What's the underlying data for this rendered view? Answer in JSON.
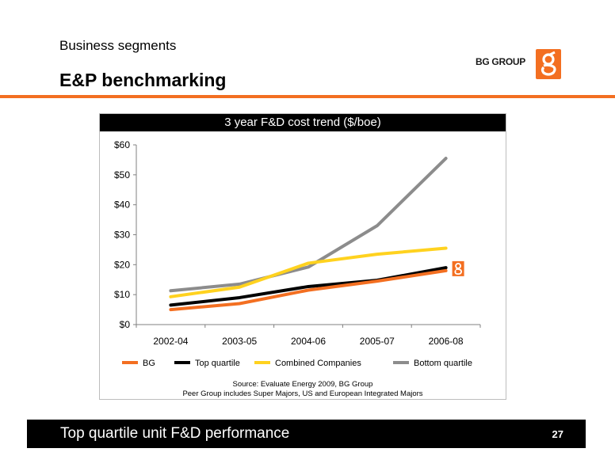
{
  "header": {
    "subtitle": "Business segments",
    "title": "E&P benchmarking",
    "logo_text": "BG GROUP"
  },
  "colors": {
    "accent": "#f36f21",
    "bg": "#f36f21",
    "top_quartile": "#000000",
    "combined": "#ffd21f",
    "bottom_quartile": "#8c8c8c"
  },
  "chart_data": {
    "type": "line",
    "title": "3 year F&D cost trend ($/boe)",
    "categories": [
      "2002-04",
      "2003-05",
      "2004-06",
      "2005-07",
      "2006-08"
    ],
    "ylim": [
      0,
      60
    ],
    "yticks": [
      "$0",
      "$10",
      "$20",
      "$30",
      "$40",
      "$50",
      "$60"
    ],
    "grid": false,
    "legend_position": "bottom",
    "series": [
      {
        "name": "BG",
        "color": "#f36f21",
        "values": [
          5,
          7,
          11.5,
          14.5,
          18
        ]
      },
      {
        "name": "Top quartile",
        "color": "#000000",
        "values": [
          6.5,
          9,
          12.7,
          14.8,
          19
        ]
      },
      {
        "name": "Combined Companies",
        "color": "#ffd21f",
        "values": [
          9.3,
          12.5,
          20.5,
          23.5,
          25.5
        ]
      },
      {
        "name": "Bottom quartile",
        "color": "#8c8c8c",
        "values": [
          11.3,
          13.5,
          19.2,
          33,
          55.5
        ]
      }
    ],
    "source_lines": [
      "Source: Evaluate Energy 2009, BG Group",
      "Peer Group includes Super Majors, US and European Integrated Majors"
    ]
  },
  "footer": {
    "text": "Top quartile unit F&D performance",
    "page_number": "27"
  }
}
